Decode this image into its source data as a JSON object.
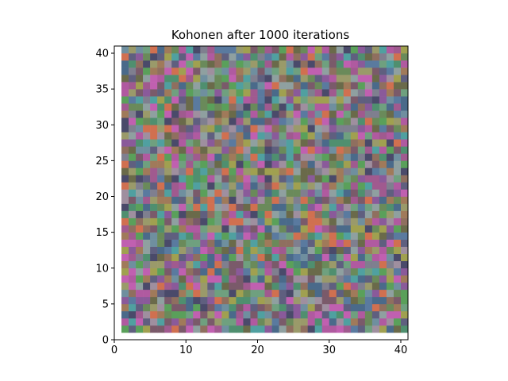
{
  "chart_data": {
    "type": "heatmap",
    "title": "Kohonen after 1000 iterations",
    "xlabel": "",
    "ylabel": "",
    "xlim": [
      0,
      41
    ],
    "ylim": [
      0,
      41
    ],
    "grid_size": 40,
    "cell_origin": 1,
    "xticks": [
      0,
      10,
      20,
      30,
      40
    ],
    "yticks": [
      0,
      5,
      10,
      15,
      20,
      25,
      30,
      35,
      40
    ],
    "grid": false,
    "description_values": "40x40 self-organizing map of RGB colour vectors; cells are predominantly muted greens, greys, purples, blues and magentas with scattered bright accents",
    "palette": [
      "#6a8a5a",
      "#7f7f8f",
      "#8a5a9a",
      "#5a7a9f",
      "#a05a8f",
      "#4f8f6f",
      "#9a9a6a",
      "#5f5f7f",
      "#8f6f5f",
      "#6fa07f",
      "#b05aa0",
      "#4a6a8a",
      "#9f8f9f",
      "#6f8f9f",
      "#a07a5a",
      "#5aa05a",
      "#7a5a6a",
      "#8fa0a0",
      "#6a6a4a",
      "#c060b0",
      "#50a0a0",
      "#d07050",
      "#4a4a6a",
      "#a0a050"
    ]
  }
}
